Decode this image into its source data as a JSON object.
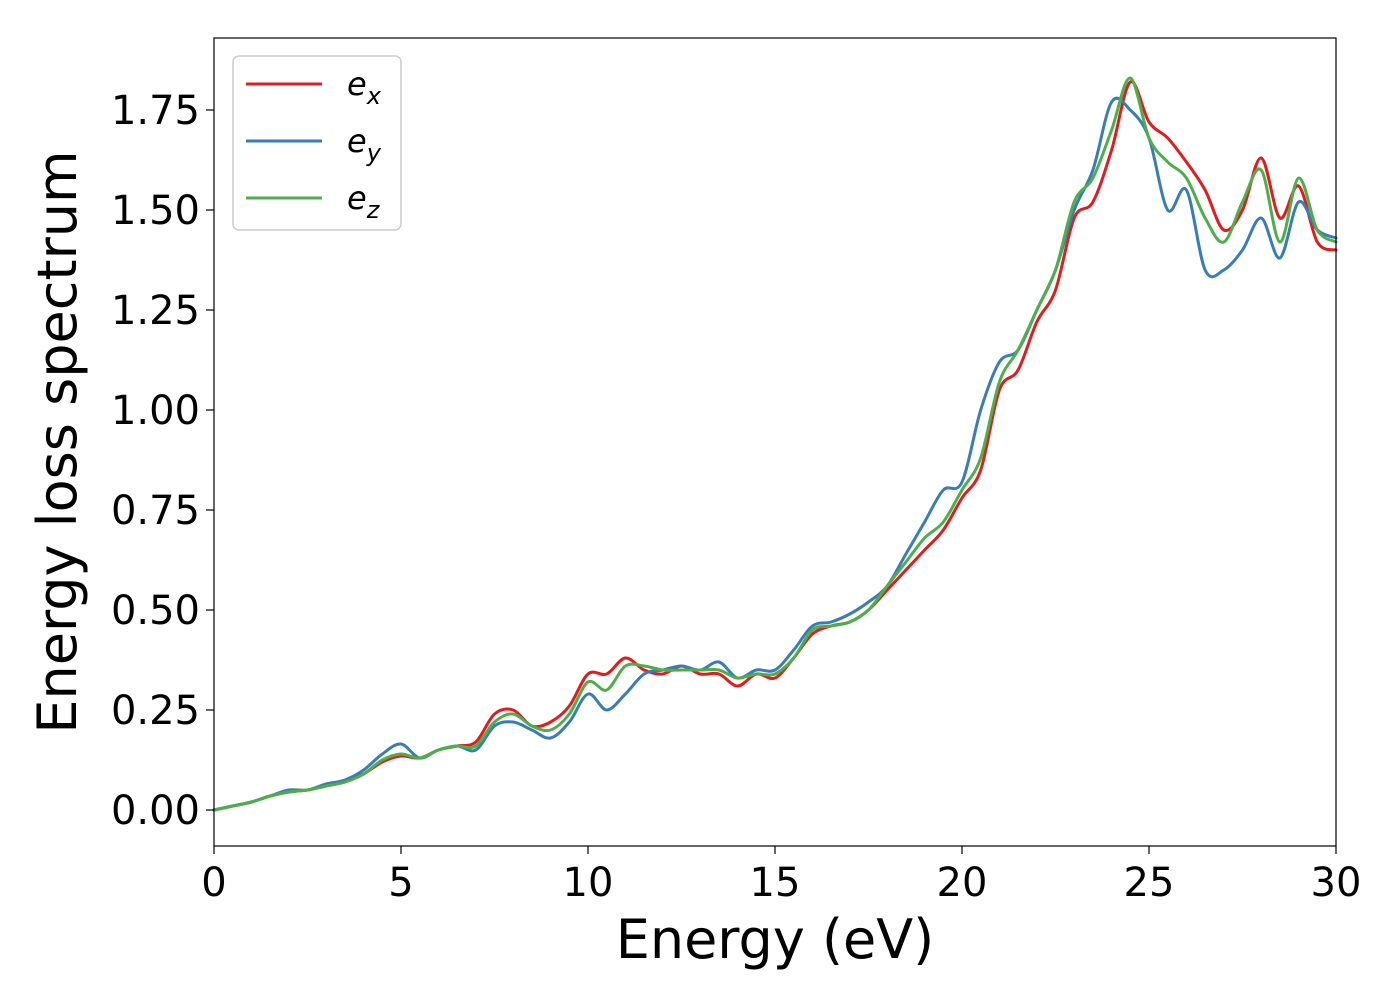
{
  "chart_data": {
    "type": "line",
    "title": "",
    "xlabel": "Energy (eV)",
    "ylabel": "Energy loss spectrum",
    "xlim": [
      0,
      30
    ],
    "ylim": [
      -0.09,
      1.93
    ],
    "xticks": [
      0,
      5,
      10,
      15,
      20,
      25,
      30
    ],
    "xtick_labels": [
      "0",
      "5",
      "10",
      "15",
      "20",
      "25",
      "30"
    ],
    "yticks": [
      0.0,
      0.25,
      0.5,
      0.75,
      1.0,
      1.25,
      1.5,
      1.75
    ],
    "ytick_labels": [
      "0.00",
      "0.25",
      "0.50",
      "0.75",
      "1.00",
      "1.25",
      "1.50",
      "1.75"
    ],
    "grid": false,
    "legend_position": "top-left",
    "series": [
      {
        "name": "e",
        "subscript": "x",
        "color": "#e41a1c",
        "x": [
          0,
          0.5,
          1,
          1.5,
          2,
          2.5,
          3,
          3.5,
          4,
          4.5,
          5,
          5.5,
          6,
          6.5,
          7,
          7.5,
          8,
          8.5,
          9,
          9.5,
          10,
          10.5,
          11,
          11.5,
          12,
          12.5,
          13,
          13.5,
          14,
          14.5,
          15,
          15.5,
          16,
          16.5,
          17,
          17.5,
          18,
          18.5,
          19,
          19.5,
          20,
          20.5,
          21,
          21.5,
          22,
          22.5,
          23,
          23.5,
          24,
          24.5,
          25,
          25.5,
          26,
          26.5,
          27,
          27.5,
          28,
          28.5,
          29,
          29.5,
          30
        ],
        "values": [
          0.0,
          0.01,
          0.02,
          0.035,
          0.045,
          0.05,
          0.06,
          0.07,
          0.09,
          0.12,
          0.135,
          0.13,
          0.15,
          0.16,
          0.17,
          0.24,
          0.25,
          0.21,
          0.22,
          0.26,
          0.34,
          0.34,
          0.38,
          0.35,
          0.34,
          0.36,
          0.34,
          0.34,
          0.31,
          0.34,
          0.33,
          0.38,
          0.44,
          0.46,
          0.47,
          0.5,
          0.55,
          0.6,
          0.65,
          0.7,
          0.78,
          0.85,
          1.05,
          1.1,
          1.22,
          1.3,
          1.48,
          1.52,
          1.65,
          1.82,
          1.72,
          1.68,
          1.62,
          1.55,
          1.45,
          1.5,
          1.63,
          1.48,
          1.56,
          1.42,
          1.4
        ]
      },
      {
        "name": "e",
        "subscript": "y",
        "color": "#377eb8",
        "x": [
          0,
          0.5,
          1,
          1.5,
          2,
          2.5,
          3,
          3.5,
          4,
          4.5,
          5,
          5.5,
          6,
          6.5,
          7,
          7.5,
          8,
          8.5,
          9,
          9.5,
          10,
          10.5,
          11,
          11.5,
          12,
          12.5,
          13,
          13.5,
          14,
          14.5,
          15,
          15.5,
          16,
          16.5,
          17,
          17.5,
          18,
          18.5,
          19,
          19.5,
          20,
          20.5,
          21,
          21.5,
          22,
          22.5,
          23,
          23.5,
          24,
          24.5,
          25,
          25.5,
          26,
          26.5,
          27,
          27.5,
          28,
          28.5,
          29,
          29.5,
          30
        ],
        "values": [
          0.0,
          0.01,
          0.02,
          0.035,
          0.05,
          0.05,
          0.065,
          0.075,
          0.1,
          0.14,
          0.165,
          0.13,
          0.15,
          0.16,
          0.15,
          0.21,
          0.22,
          0.2,
          0.18,
          0.22,
          0.29,
          0.25,
          0.29,
          0.34,
          0.35,
          0.36,
          0.35,
          0.37,
          0.33,
          0.35,
          0.35,
          0.4,
          0.46,
          0.47,
          0.49,
          0.52,
          0.56,
          0.64,
          0.72,
          0.8,
          0.82,
          1.0,
          1.12,
          1.15,
          1.25,
          1.35,
          1.5,
          1.6,
          1.77,
          1.75,
          1.68,
          1.5,
          1.55,
          1.35,
          1.35,
          1.4,
          1.48,
          1.38,
          1.52,
          1.45,
          1.43
        ]
      },
      {
        "name": "e",
        "subscript": "z",
        "color": "#4daf4a",
        "x": [
          0,
          0.5,
          1,
          1.5,
          2,
          2.5,
          3,
          3.5,
          4,
          4.5,
          5,
          5.5,
          6,
          6.5,
          7,
          7.5,
          8,
          8.5,
          9,
          9.5,
          10,
          10.5,
          11,
          11.5,
          12,
          12.5,
          13,
          13.5,
          14,
          14.5,
          15,
          15.5,
          16,
          16.5,
          17,
          17.5,
          18,
          18.5,
          19,
          19.5,
          20,
          20.5,
          21,
          21.5,
          22,
          22.5,
          23,
          23.5,
          24,
          24.5,
          25,
          25.5,
          26,
          26.5,
          27,
          27.5,
          28,
          28.5,
          29,
          29.5,
          30
        ],
        "values": [
          0.0,
          0.01,
          0.02,
          0.035,
          0.045,
          0.05,
          0.06,
          0.07,
          0.09,
          0.125,
          0.14,
          0.13,
          0.15,
          0.16,
          0.16,
          0.22,
          0.24,
          0.21,
          0.2,
          0.24,
          0.32,
          0.3,
          0.36,
          0.36,
          0.35,
          0.35,
          0.35,
          0.35,
          0.33,
          0.34,
          0.34,
          0.38,
          0.45,
          0.46,
          0.47,
          0.5,
          0.56,
          0.62,
          0.68,
          0.72,
          0.8,
          0.88,
          1.07,
          1.15,
          1.25,
          1.35,
          1.52,
          1.58,
          1.7,
          1.83,
          1.68,
          1.62,
          1.58,
          1.48,
          1.42,
          1.52,
          1.6,
          1.42,
          1.58,
          1.45,
          1.42
        ]
      }
    ]
  }
}
